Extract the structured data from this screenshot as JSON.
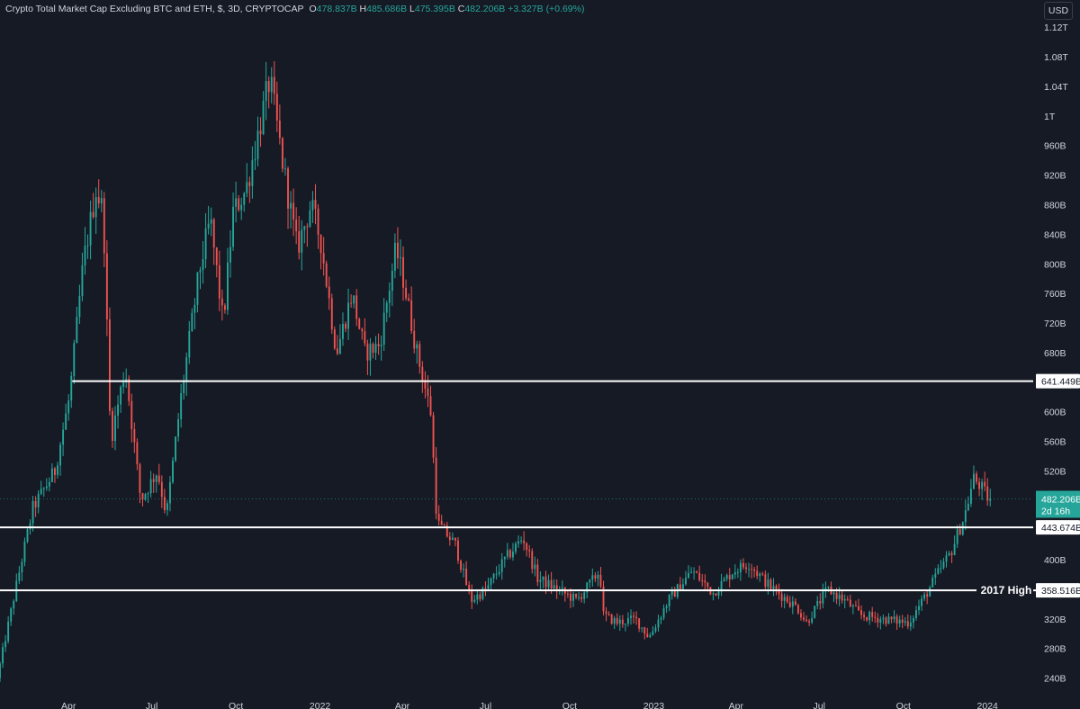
{
  "header": {
    "title": "Crypto Total Market Cap Excluding BTC and ETH, $, 3D, CRYPTOCAP",
    "open_label": "O",
    "open_value": "478.837B",
    "high_label": "H",
    "high_value": "485.686B",
    "low_label": "L",
    "low_value": "475.395B",
    "close_label": "C",
    "close_value": "482.206B",
    "change": "+3.327B (+0.69%)"
  },
  "currency_button": "USD",
  "colors": {
    "background": "#161a25",
    "up": "#26a69a",
    "down": "#ef5350",
    "level_line": "#ffffff",
    "axis_text": "#d1d4dc",
    "price_badge": "#26a69a"
  },
  "chart_data": {
    "type": "candlestick",
    "title": "Crypto Total Market Cap Excluding BTC and ETH, $, 3D, CRYPTOCAP",
    "ylim": [
      220,
      1130
    ],
    "y_tick_values": [
      240,
      280,
      320,
      360,
      400,
      440,
      480,
      520,
      560,
      600,
      640,
      680,
      720,
      760,
      800,
      840,
      880,
      920,
      960,
      1000,
      1040,
      1080,
      1120
    ],
    "y_tick_labels": [
      "240B",
      "280B",
      "320B",
      "360B",
      "400B",
      "440B",
      "480B",
      "520B",
      "560B",
      "600B",
      "640B",
      "680B",
      "720B",
      "760B",
      "800B",
      "840B",
      "880B",
      "920B",
      "960B",
      "1T",
      "1.04T",
      "1.08T",
      "1.12T"
    ],
    "x_tick_dates": [
      "2021-04-01",
      "2021-07-01",
      "2021-10-01",
      "2022-01-01",
      "2022-04-01",
      "2022-07-01",
      "2022-10-01",
      "2023-01-01",
      "2023-04-01",
      "2023-07-01",
      "2023-10-01",
      "2024-01-01"
    ],
    "x_tick_labels": [
      "Apr",
      "Jul",
      "Oct",
      "2022",
      "Apr",
      "Jul",
      "Oct",
      "2023",
      "Apr",
      "Jul",
      "Oct",
      "2024"
    ],
    "xlim": [
      "2021-01-16",
      "2024-02-20"
    ],
    "last_date": "2024-01-05",
    "price_path": [
      [
        "2021-01-16",
        240
      ],
      [
        "2021-02-05",
        360
      ],
      [
        "2021-02-24",
        470
      ],
      [
        "2021-03-20",
        520
      ],
      [
        "2021-04-05",
        620
      ],
      [
        "2021-04-20",
        800
      ],
      [
        "2021-05-04",
        900
      ],
      [
        "2021-05-12",
        870
      ],
      [
        "2021-05-20",
        560
      ],
      [
        "2021-06-05",
        660
      ],
      [
        "2021-06-22",
        480
      ],
      [
        "2021-07-10",
        520
      ],
      [
        "2021-07-20",
        460
      ],
      [
        "2021-08-05",
        620
      ],
      [
        "2021-08-25",
        790
      ],
      [
        "2021-09-06",
        860
      ],
      [
        "2021-09-20",
        720
      ],
      [
        "2021-10-01",
        870
      ],
      [
        "2021-10-15",
        900
      ],
      [
        "2021-11-05",
        1020
      ],
      [
        "2021-11-10",
        1050
      ],
      [
        "2021-11-25",
        930
      ],
      [
        "2021-12-10",
        820
      ],
      [
        "2021-12-25",
        880
      ],
      [
        "2022-01-05",
        830
      ],
      [
        "2022-01-22",
        680
      ],
      [
        "2022-02-08",
        760
      ],
      [
        "2022-02-22",
        680
      ],
      [
        "2022-03-10",
        690
      ],
      [
        "2022-03-28",
        820
      ],
      [
        "2022-04-05",
        780
      ],
      [
        "2022-04-20",
        680
      ],
      [
        "2022-05-05",
        600
      ],
      [
        "2022-05-12",
        450
      ],
      [
        "2022-06-01",
        420
      ],
      [
        "2022-06-18",
        345
      ],
      [
        "2022-07-05",
        360
      ],
      [
        "2022-07-25",
        400
      ],
      [
        "2022-08-14",
        430
      ],
      [
        "2022-08-30",
        375
      ],
      [
        "2022-09-20",
        360
      ],
      [
        "2022-10-12",
        345
      ],
      [
        "2022-11-06",
        385
      ],
      [
        "2022-11-10",
        325
      ],
      [
        "2022-11-25",
        315
      ],
      [
        "2022-12-15",
        320
      ],
      [
        "2022-12-30",
        295
      ],
      [
        "2023-01-20",
        345
      ],
      [
        "2023-02-15",
        385
      ],
      [
        "2023-03-10",
        355
      ],
      [
        "2023-04-01",
        385
      ],
      [
        "2023-04-18",
        395
      ],
      [
        "2023-05-10",
        365
      ],
      [
        "2023-06-10",
        335
      ],
      [
        "2023-06-20",
        315
      ],
      [
        "2023-07-13",
        360
      ],
      [
        "2023-08-01",
        345
      ],
      [
        "2023-08-18",
        325
      ],
      [
        "2023-09-10",
        320
      ],
      [
        "2023-10-10",
        315
      ],
      [
        "2023-10-25",
        345
      ],
      [
        "2023-11-10",
        380
      ],
      [
        "2023-11-25",
        410
      ],
      [
        "2023-12-10",
        460
      ],
      [
        "2023-12-20",
        510
      ],
      [
        "2023-12-27",
        500
      ],
      [
        "2024-01-05",
        482
      ]
    ],
    "levels": [
      {
        "value": 641.449,
        "label": "641.449B",
        "start_date": "2021-04-05"
      },
      {
        "value": 443.674,
        "label": "443.674B",
        "start_date": "2021-01-16"
      },
      {
        "value": 358.516,
        "label": "358.516B",
        "start_date": "2021-01-16",
        "note": "2017 High"
      }
    ],
    "last_price": {
      "value": 482.206,
      "label": "482.206B",
      "countdown": "2d 16h"
    }
  }
}
